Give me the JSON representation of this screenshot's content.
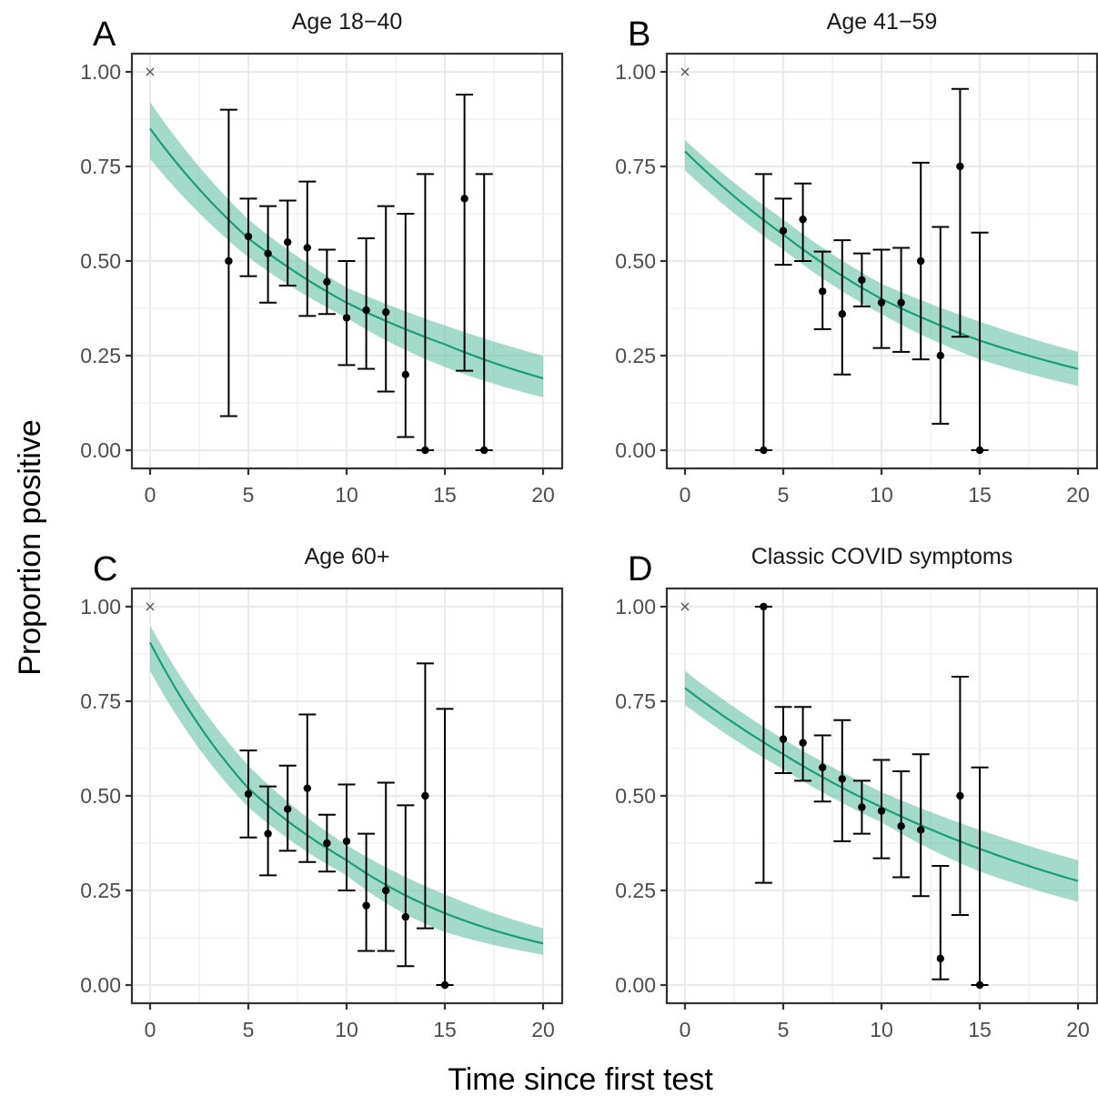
{
  "figure": {
    "xlabel": "Time since first test",
    "ylabel": "Proportion positive"
  },
  "colors": {
    "band": "#66c2a5",
    "line": "#1b9e77",
    "points": "#000000",
    "grid": "#ebebeb",
    "frame": "#333333"
  },
  "chart_data": [
    {
      "panel": "A",
      "title": "Age 18−40",
      "type": "scatter",
      "xlim": [
        0,
        20
      ],
      "ylim": [
        0,
        1
      ],
      "x_ticks": [
        0,
        5,
        10,
        15,
        20
      ],
      "y_ticks": [
        "0.00",
        "0.25",
        "0.50",
        "0.75",
        "1.00"
      ],
      "anchor_marker": {
        "x": 0,
        "y": 1.0,
        "symbol": "×"
      },
      "fit": {
        "x": [
          0,
          5,
          10,
          15,
          20
        ],
        "y": [
          0.85,
          0.56,
          0.39,
          0.28,
          0.19
        ],
        "lower": [
          0.77,
          0.51,
          0.35,
          0.22,
          0.14
        ],
        "upper": [
          0.92,
          0.61,
          0.43,
          0.33,
          0.25
        ]
      },
      "points": [
        {
          "x": 4,
          "y": 0.5,
          "lo": 0.09,
          "hi": 0.9
        },
        {
          "x": 5,
          "y": 0.565,
          "lo": 0.46,
          "hi": 0.665
        },
        {
          "x": 6,
          "y": 0.52,
          "lo": 0.39,
          "hi": 0.645
        },
        {
          "x": 7,
          "y": 0.55,
          "lo": 0.435,
          "hi": 0.66
        },
        {
          "x": 8,
          "y": 0.535,
          "lo": 0.355,
          "hi": 0.71
        },
        {
          "x": 9,
          "y": 0.445,
          "lo": 0.36,
          "hi": 0.53
        },
        {
          "x": 10,
          "y": 0.35,
          "lo": 0.225,
          "hi": 0.5
        },
        {
          "x": 11,
          "y": 0.37,
          "lo": 0.215,
          "hi": 0.56
        },
        {
          "x": 12,
          "y": 0.365,
          "lo": 0.155,
          "hi": 0.645
        },
        {
          "x": 13,
          "y": 0.2,
          "lo": 0.035,
          "hi": 0.625
        },
        {
          "x": 14,
          "y": 0.0,
          "lo": 0.0,
          "hi": 0.73
        },
        {
          "x": 16,
          "y": 0.665,
          "lo": 0.21,
          "hi": 0.94
        },
        {
          "x": 17,
          "y": 0.0,
          "lo": 0.0,
          "hi": 0.73
        }
      ]
    },
    {
      "panel": "B",
      "title": "Age 41−59",
      "type": "scatter",
      "xlim": [
        0,
        20
      ],
      "ylim": [
        0,
        1
      ],
      "x_ticks": [
        0,
        5,
        10,
        15,
        20
      ],
      "y_ticks": [
        "0.00",
        "0.25",
        "0.50",
        "0.75",
        "1.00"
      ],
      "anchor_marker": {
        "x": 0,
        "y": 1.0,
        "symbol": "×"
      },
      "fit": {
        "x": [
          0,
          5,
          10,
          15,
          20
        ],
        "y": [
          0.79,
          0.57,
          0.4,
          0.29,
          0.215
        ],
        "lower": [
          0.74,
          0.53,
          0.36,
          0.24,
          0.17
        ],
        "upper": [
          0.82,
          0.61,
          0.44,
          0.34,
          0.26
        ]
      },
      "points": [
        {
          "x": 4,
          "y": 0.0,
          "lo": 0.0,
          "hi": 0.73
        },
        {
          "x": 5,
          "y": 0.58,
          "lo": 0.49,
          "hi": 0.665
        },
        {
          "x": 6,
          "y": 0.61,
          "lo": 0.5,
          "hi": 0.705
        },
        {
          "x": 7,
          "y": 0.42,
          "lo": 0.32,
          "hi": 0.525
        },
        {
          "x": 8,
          "y": 0.36,
          "lo": 0.2,
          "hi": 0.555
        },
        {
          "x": 9,
          "y": 0.45,
          "lo": 0.38,
          "hi": 0.52
        },
        {
          "x": 10,
          "y": 0.39,
          "lo": 0.27,
          "hi": 0.53
        },
        {
          "x": 11,
          "y": 0.39,
          "lo": 0.26,
          "hi": 0.535
        },
        {
          "x": 12,
          "y": 0.5,
          "lo": 0.24,
          "hi": 0.76
        },
        {
          "x": 13,
          "y": 0.25,
          "lo": 0.07,
          "hi": 0.59
        },
        {
          "x": 14,
          "y": 0.75,
          "lo": 0.3,
          "hi": 0.955
        },
        {
          "x": 15,
          "y": 0.0,
          "lo": 0.0,
          "hi": 0.575
        }
      ]
    },
    {
      "panel": "C",
      "title": "Age 60+",
      "type": "scatter",
      "xlim": [
        0,
        20
      ],
      "ylim": [
        0,
        1
      ],
      "x_ticks": [
        0,
        5,
        10,
        15,
        20
      ],
      "y_ticks": [
        "0.00",
        "0.25",
        "0.50",
        "0.75",
        "1.00"
      ],
      "anchor_marker": {
        "x": 0,
        "y": 1.0,
        "symbol": "×"
      },
      "fit": {
        "x": [
          0,
          5,
          10,
          15,
          20
        ],
        "y": [
          0.905,
          0.52,
          0.33,
          0.19,
          0.11
        ],
        "lower": [
          0.83,
          0.47,
          0.29,
          0.14,
          0.08
        ],
        "upper": [
          0.95,
          0.58,
          0.37,
          0.24,
          0.15
        ]
      },
      "points": [
        {
          "x": 5,
          "y": 0.505,
          "lo": 0.39,
          "hi": 0.62
        },
        {
          "x": 6,
          "y": 0.4,
          "lo": 0.29,
          "hi": 0.525
        },
        {
          "x": 7,
          "y": 0.465,
          "lo": 0.355,
          "hi": 0.58
        },
        {
          "x": 8,
          "y": 0.52,
          "lo": 0.325,
          "hi": 0.715
        },
        {
          "x": 9,
          "y": 0.375,
          "lo": 0.3,
          "hi": 0.45
        },
        {
          "x": 10,
          "y": 0.38,
          "lo": 0.25,
          "hi": 0.53
        },
        {
          "x": 11,
          "y": 0.21,
          "lo": 0.09,
          "hi": 0.4
        },
        {
          "x": 12,
          "y": 0.25,
          "lo": 0.09,
          "hi": 0.535
        },
        {
          "x": 13,
          "y": 0.18,
          "lo": 0.05,
          "hi": 0.475
        },
        {
          "x": 14,
          "y": 0.5,
          "lo": 0.15,
          "hi": 0.85
        },
        {
          "x": 15,
          "y": 0.0,
          "lo": 0.0,
          "hi": 0.73
        }
      ]
    },
    {
      "panel": "D",
      "title": "Classic COVID symptoms",
      "type": "scatter",
      "xlim": [
        0,
        20
      ],
      "ylim": [
        0,
        1
      ],
      "x_ticks": [
        0,
        5,
        10,
        15,
        20
      ],
      "y_ticks": [
        "0.00",
        "0.25",
        "0.50",
        "0.75",
        "1.00"
      ],
      "anchor_marker": {
        "x": 0,
        "y": 1.0,
        "symbol": "×"
      },
      "fit": {
        "x": [
          0,
          5,
          10,
          15,
          20
        ],
        "y": [
          0.785,
          0.61,
          0.47,
          0.36,
          0.275
        ],
        "lower": [
          0.74,
          0.57,
          0.43,
          0.3,
          0.22
        ],
        "upper": [
          0.83,
          0.65,
          0.51,
          0.41,
          0.33
        ]
      },
      "points": [
        {
          "x": 4,
          "y": 1.0,
          "lo": 0.27,
          "hi": 1.0
        },
        {
          "x": 5,
          "y": 0.65,
          "lo": 0.56,
          "hi": 0.735
        },
        {
          "x": 6,
          "y": 0.64,
          "lo": 0.54,
          "hi": 0.735
        },
        {
          "x": 7,
          "y": 0.575,
          "lo": 0.485,
          "hi": 0.66
        },
        {
          "x": 8,
          "y": 0.545,
          "lo": 0.38,
          "hi": 0.7
        },
        {
          "x": 9,
          "y": 0.47,
          "lo": 0.4,
          "hi": 0.54
        },
        {
          "x": 10,
          "y": 0.46,
          "lo": 0.335,
          "hi": 0.595
        },
        {
          "x": 11,
          "y": 0.42,
          "lo": 0.285,
          "hi": 0.565
        },
        {
          "x": 12,
          "y": 0.41,
          "lo": 0.235,
          "hi": 0.61
        },
        {
          "x": 13,
          "y": 0.07,
          "lo": 0.015,
          "hi": 0.315
        },
        {
          "x": 14,
          "y": 0.5,
          "lo": 0.185,
          "hi": 0.815
        },
        {
          "x": 15,
          "y": 0.0,
          "lo": 0.0,
          "hi": 0.575
        }
      ]
    }
  ]
}
